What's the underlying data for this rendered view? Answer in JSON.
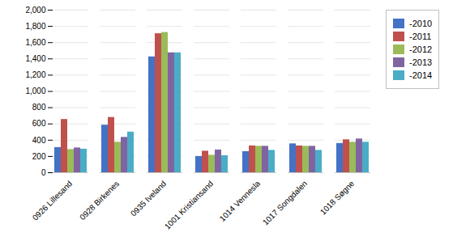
{
  "chart_data": {
    "type": "bar",
    "categories": [
      "0926 Lillesand",
      "0928 Birkenes",
      "0935 Iveland",
      "1001 Kristiansand",
      "1014 Vennesla",
      "1017 Songdalen",
      "1018 Søgne"
    ],
    "series": [
      {
        "name": "-2010",
        "color": "#4472C4",
        "values": [
          310,
          585,
          1425,
          200,
          260,
          355,
          360
        ]
      },
      {
        "name": "-2011",
        "color": "#C0504D",
        "values": [
          655,
          680,
          1710,
          265,
          330,
          330,
          405
        ]
      },
      {
        "name": "-2012",
        "color": "#9BBB59",
        "values": [
          285,
          375,
          1725,
          215,
          325,
          325,
          375
        ]
      },
      {
        "name": "-2013",
        "color": "#8064A2",
        "values": [
          305,
          435,
          1475,
          280,
          325,
          325,
          415
        ]
      },
      {
        "name": "-2014",
        "color": "#4BACC6",
        "values": [
          290,
          500,
          1475,
          210,
          275,
          275,
          375
        ]
      }
    ],
    "ylim": [
      0,
      2000
    ],
    "yticks": [
      0,
      200,
      400,
      600,
      800,
      1000,
      1200,
      1400,
      1600,
      1800,
      2000
    ],
    "grid": true,
    "legend": "right"
  }
}
